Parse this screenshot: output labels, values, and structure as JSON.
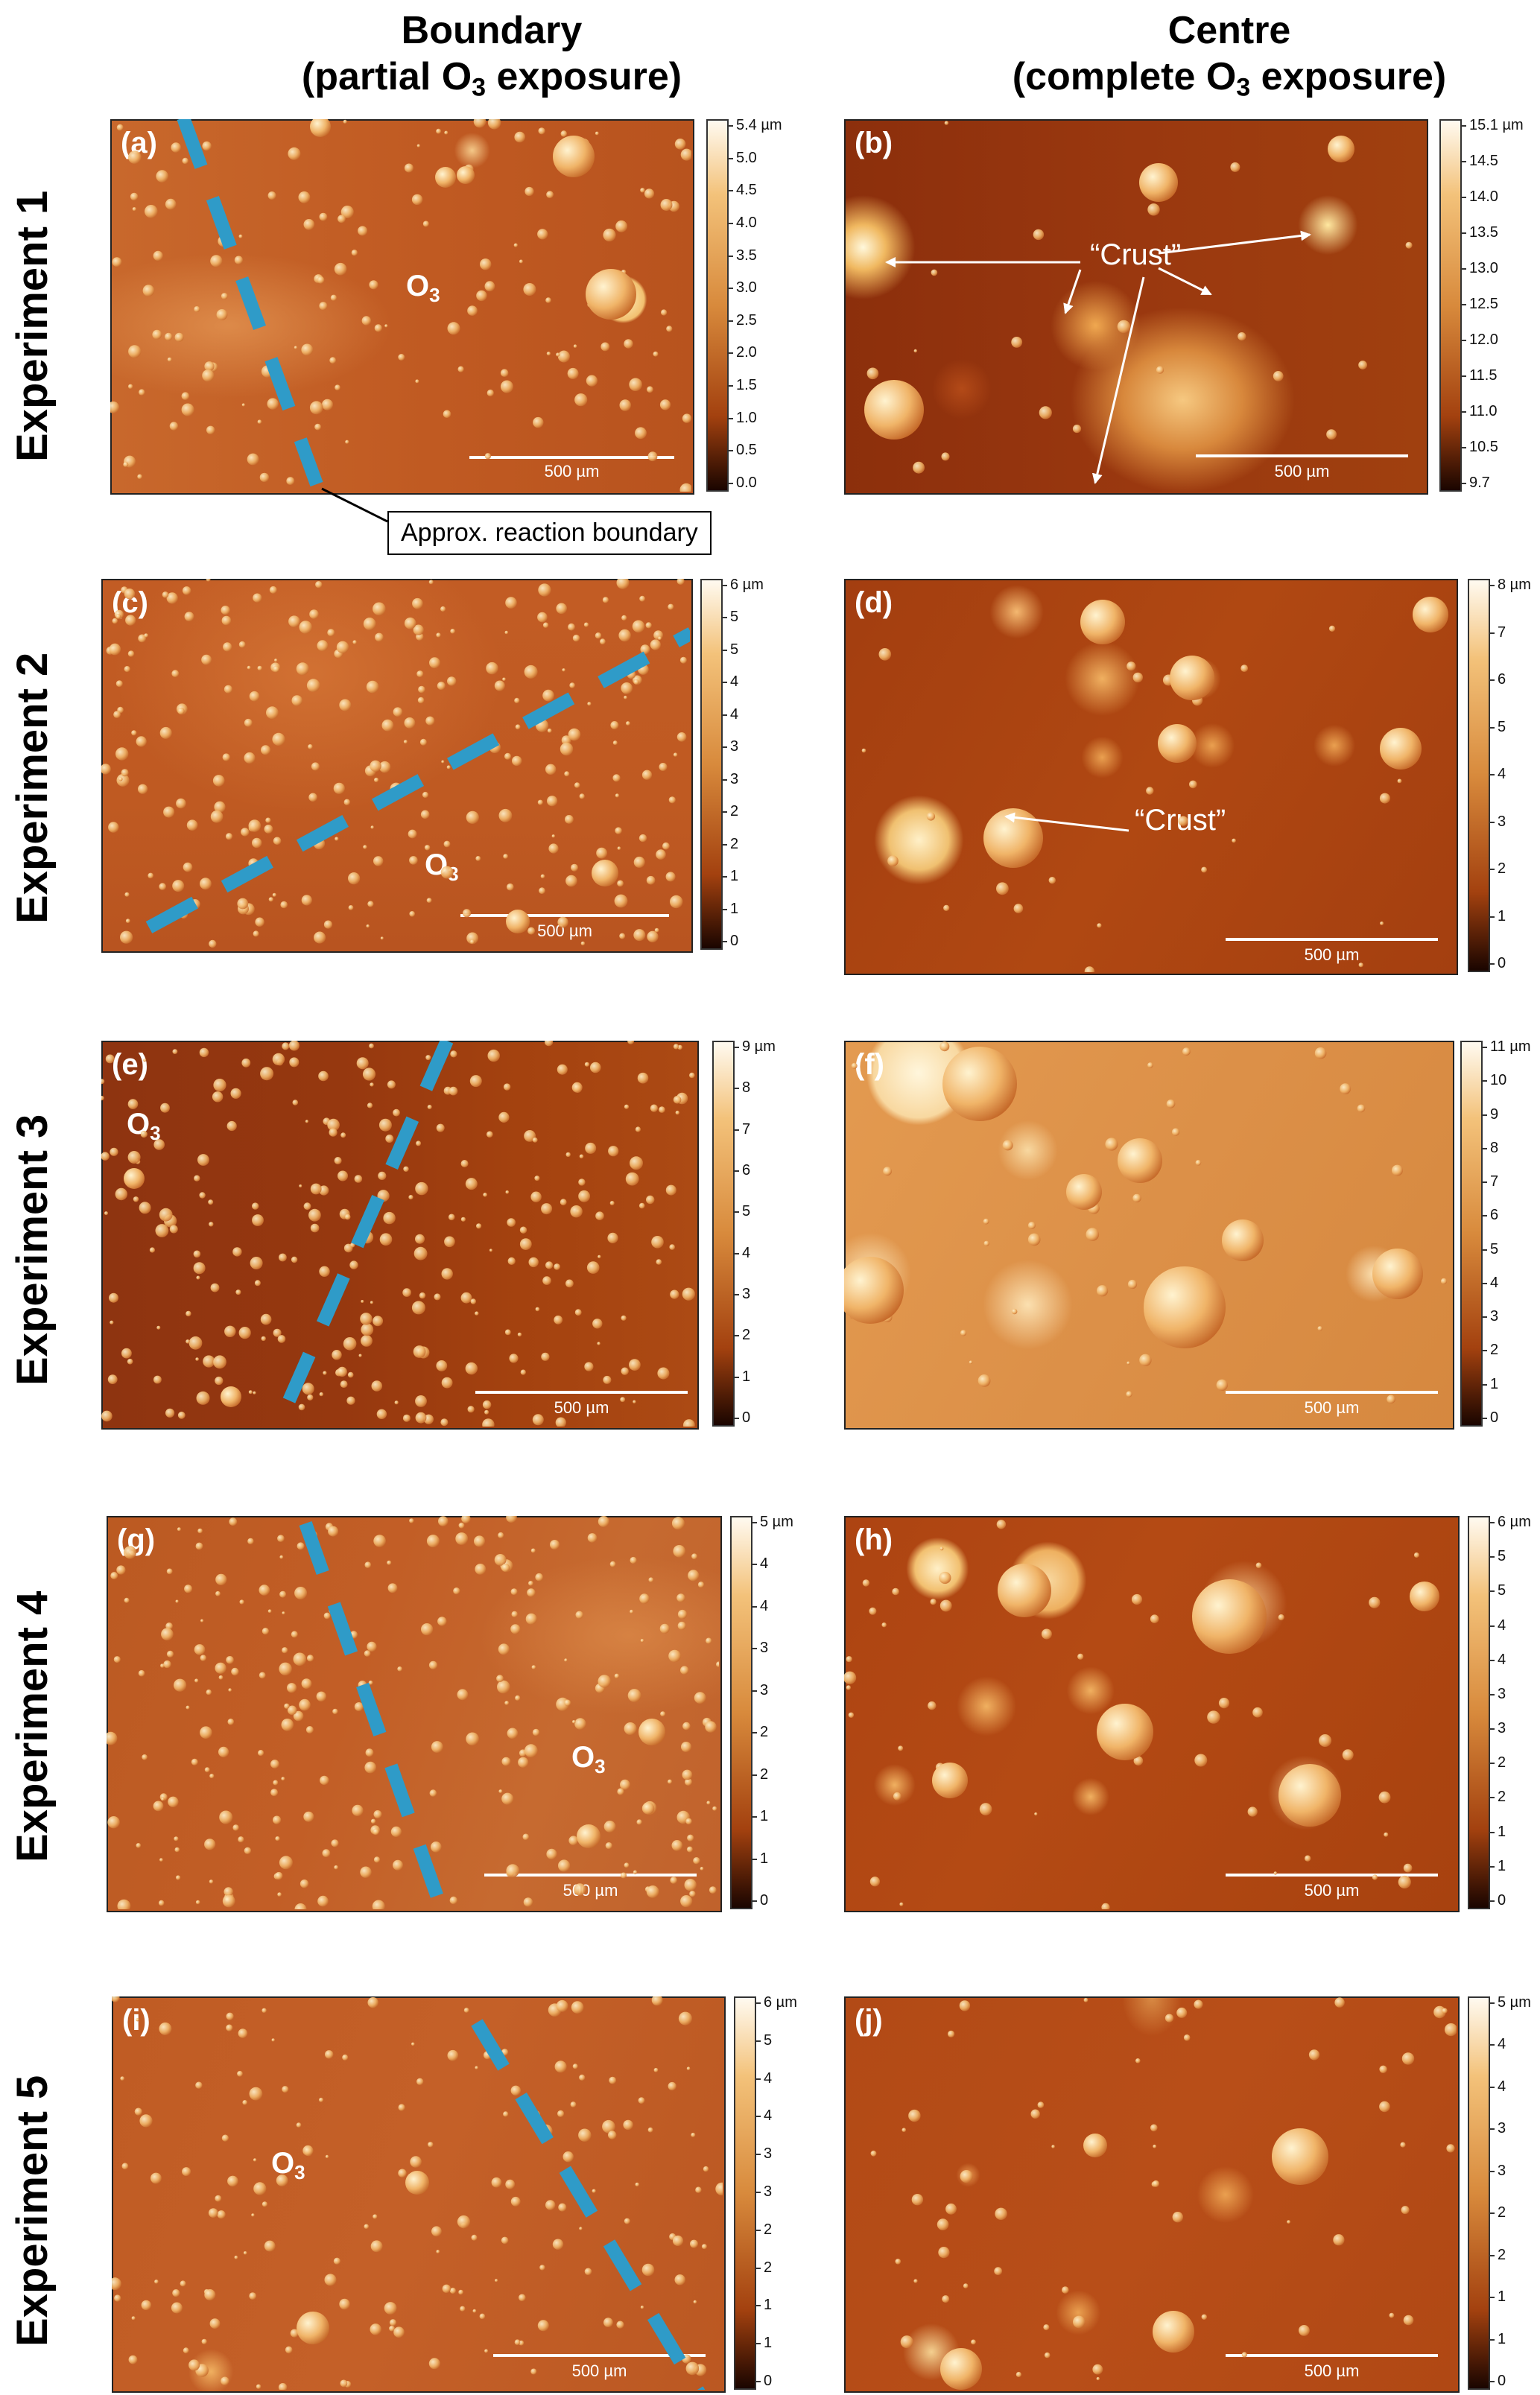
{
  "headers": {
    "left_main": "Boundary",
    "left_sub_pre": "(partial O",
    "left_sub_sub": "3",
    "left_sub_post": " exposure)",
    "right_main": "Centre",
    "right_sub_pre": "(complete O",
    "right_sub_sub": "3",
    "right_sub_post": " exposure)"
  },
  "rows": [
    {
      "label": "Experiment 1"
    },
    {
      "label": "Experiment 2"
    },
    {
      "label": "Experiment 3"
    },
    {
      "label": "Experiment 4"
    },
    {
      "label": "Experiment 5"
    }
  ],
  "panels": {
    "a": {
      "letter": "(a)",
      "o3": "O",
      "o3_sub": "3",
      "scale": "500 µm",
      "cbar_ticks": [
        "5.4 µm",
        "5.0",
        "4.5",
        "4.0",
        "3.5",
        "3.0",
        "2.5",
        "2.0",
        "1.5",
        "1.0",
        "0.5",
        "0.0"
      ]
    },
    "b": {
      "letter": "(b)",
      "scale": "500 µm",
      "cbar_ticks": [
        "15.1 µm",
        "14.5",
        "14.0",
        "13.5",
        "13.0",
        "12.5",
        "12.0",
        "11.5",
        "11.0",
        "10.5",
        "9.7"
      ]
    },
    "c": {
      "letter": "(c)",
      "o3": "O",
      "o3_sub": "3",
      "scale": "500 µm",
      "cbar_ticks": [
        "6 µm",
        "5",
        "5",
        "4",
        "4",
        "3",
        "3",
        "2",
        "2",
        "1",
        "1",
        "0"
      ]
    },
    "d": {
      "letter": "(d)",
      "scale": "500 µm",
      "cbar_ticks": [
        "8 µm",
        "7",
        "6",
        "5",
        "4",
        "3",
        "2",
        "1",
        "0"
      ]
    },
    "e": {
      "letter": "(e)",
      "o3": "O",
      "o3_sub": "3",
      "scale": "500 µm",
      "cbar_ticks": [
        "9 µm",
        "8",
        "7",
        "6",
        "5",
        "4",
        "3",
        "2",
        "1",
        "0"
      ]
    },
    "f": {
      "letter": "(f)",
      "scale": "500 µm",
      "cbar_ticks": [
        "11 µm",
        "10",
        "9",
        "8",
        "7",
        "6",
        "5",
        "4",
        "3",
        "2",
        "1",
        "0"
      ]
    },
    "g": {
      "letter": "(g)",
      "o3": "O",
      "o3_sub": "3",
      "scale": "500 µm",
      "cbar_ticks": [
        "5 µm",
        "4",
        "4",
        "3",
        "3",
        "2",
        "2",
        "1",
        "1",
        "0"
      ]
    },
    "h": {
      "letter": "(h)",
      "scale": "500 µm",
      "cbar_ticks": [
        "6 µm",
        "5",
        "5",
        "4",
        "4",
        "3",
        "3",
        "2",
        "2",
        "1",
        "1",
        "0"
      ]
    },
    "i": {
      "letter": "(i)",
      "o3": "O",
      "o3_sub": "3",
      "scale": "500 µm",
      "cbar_ticks": [
        "6 µm",
        "5",
        "4",
        "4",
        "3",
        "3",
        "2",
        "2",
        "1",
        "1",
        "0"
      ]
    },
    "j": {
      "letter": "(j)",
      "scale": "500 µm",
      "cbar_ticks": [
        "5 µm",
        "4",
        "4",
        "3",
        "3",
        "2",
        "2",
        "1",
        "1",
        "0"
      ]
    }
  },
  "annotations": {
    "crust_b": "“Crust”",
    "crust_d": "“Crust”",
    "boundary_label": "Approx. reaction boundary"
  }
}
